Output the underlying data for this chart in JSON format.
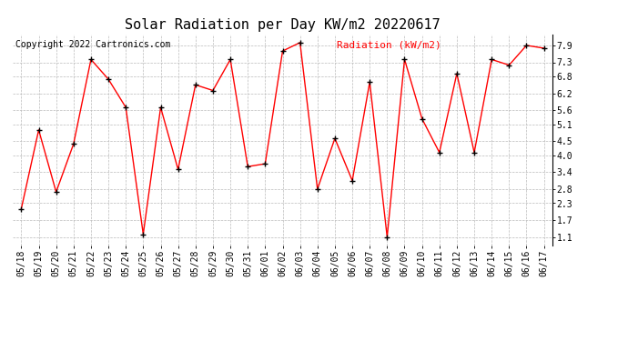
{
  "title": "Solar Radiation per Day KW/m2 20220617",
  "copyright_text": "Copyright 2022 Cartronics.com",
  "legend_label": "Radiation (kW/m2)",
  "dates": [
    "05/18",
    "05/19",
    "05/20",
    "05/21",
    "05/22",
    "05/23",
    "05/24",
    "05/25",
    "05/26",
    "05/27",
    "05/28",
    "05/29",
    "05/30",
    "05/31",
    "06/01",
    "06/02",
    "06/03",
    "06/04",
    "06/05",
    "06/06",
    "06/07",
    "06/08",
    "06/09",
    "06/10",
    "06/11",
    "06/12",
    "06/13",
    "06/14",
    "06/15",
    "06/16",
    "06/17"
  ],
  "values": [
    2.1,
    4.9,
    2.7,
    4.4,
    7.4,
    6.7,
    5.7,
    1.2,
    5.7,
    3.5,
    6.5,
    6.3,
    7.4,
    3.6,
    3.7,
    7.7,
    8.0,
    2.8,
    4.6,
    3.1,
    6.6,
    1.1,
    7.4,
    5.3,
    4.1,
    6.9,
    4.1,
    7.4,
    7.2,
    7.9,
    7.8
  ],
  "yticks": [
    1.1,
    1.7,
    2.3,
    2.8,
    3.4,
    4.0,
    4.5,
    5.1,
    5.6,
    6.2,
    6.8,
    7.3,
    7.9
  ],
  "ylim": [
    0.8,
    8.3
  ],
  "line_color": "red",
  "marker_color": "black",
  "grid_color": "#bbbbbb",
  "bg_color": "#ffffff",
  "title_fontsize": 11,
  "copyright_fontsize": 7,
  "legend_fontsize": 8,
  "tick_fontsize": 7
}
